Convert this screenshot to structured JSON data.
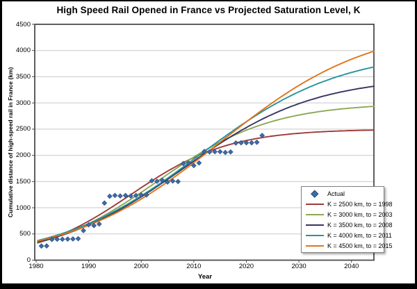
{
  "chart_data": {
    "type": "scatter",
    "title": "High Speed Rail Opened in France vs Projected Saturation Level, K",
    "xlabel": "Year",
    "ylabel": "Cumulative distance of high-speed rail in France (km)",
    "xlim": [
      1980,
      2044
    ],
    "ylim": [
      0,
      4500
    ],
    "x_ticks": [
      1980,
      1990,
      2000,
      2010,
      2020,
      2030,
      2040
    ],
    "y_ticks": [
      0,
      500,
      1000,
      1500,
      2000,
      2500,
      3000,
      3500,
      4000,
      4500
    ],
    "grid": "horizontal-only",
    "gridline_color": "#c9c9c9",
    "frame_color": "#4d4d4d",
    "legend_position": "lower-right",
    "actual_series": {
      "label": "Actual",
      "marker": "diamond",
      "color": "#3e6ba8",
      "edge_color": "#24497c",
      "points": [
        [
          1981,
          270
        ],
        [
          1982,
          272
        ],
        [
          1983,
          395
        ],
        [
          1984,
          400
        ],
        [
          1985,
          400
        ],
        [
          1986,
          402
        ],
        [
          1987,
          405
        ],
        [
          1988,
          410
        ],
        [
          1989,
          565
        ],
        [
          1990,
          675
        ],
        [
          1991,
          660
        ],
        [
          1992,
          690
        ],
        [
          1993,
          1090
        ],
        [
          1994,
          1220
        ],
        [
          1995,
          1235
        ],
        [
          1996,
          1225
        ],
        [
          1997,
          1235
        ],
        [
          1998,
          1225
        ],
        [
          1999,
          1235
        ],
        [
          2000,
          1245
        ],
        [
          2001,
          1245
        ],
        [
          2002,
          1515
        ],
        [
          2003,
          1505
        ],
        [
          2004,
          1525
        ],
        [
          2005,
          1490
        ],
        [
          2006,
          1510
        ],
        [
          2007,
          1500
        ],
        [
          2008,
          1845
        ],
        [
          2009,
          1855
        ],
        [
          2010,
          1805
        ],
        [
          2011,
          1855
        ],
        [
          2012,
          2075
        ],
        [
          2013,
          2065
        ],
        [
          2014,
          2070
        ],
        [
          2015,
          2070
        ],
        [
          2016,
          2055
        ],
        [
          2017,
          2065
        ],
        [
          2018,
          2235
        ],
        [
          2019,
          2240
        ],
        [
          2020,
          2240
        ],
        [
          2021,
          2240
        ],
        [
          2022,
          2250
        ],
        [
          2023,
          2380
        ]
      ]
    },
    "projection_series": [
      {
        "label": "K = 2500 km, to = 1998",
        "color": "#9e3a38",
        "K": 2500,
        "t0": 1998,
        "r": 0.107
      },
      {
        "label": "K = 3000 km, to = 2003",
        "color": "#8da753",
        "K": 3000,
        "t0": 2003,
        "r": 0.092
      },
      {
        "label": "K = 3500 km, to = 2008",
        "color": "#373363",
        "K": 3500,
        "t0": 2008,
        "r": 0.08
      },
      {
        "label": "K = 4000 km, to = 2011",
        "color": "#27939c",
        "K": 4000,
        "t0": 2011,
        "r": 0.074
      },
      {
        "label": "K = 4500 km, to = 2015",
        "color": "#de7419",
        "K": 4500,
        "t0": 2015,
        "r": 0.07
      }
    ]
  }
}
